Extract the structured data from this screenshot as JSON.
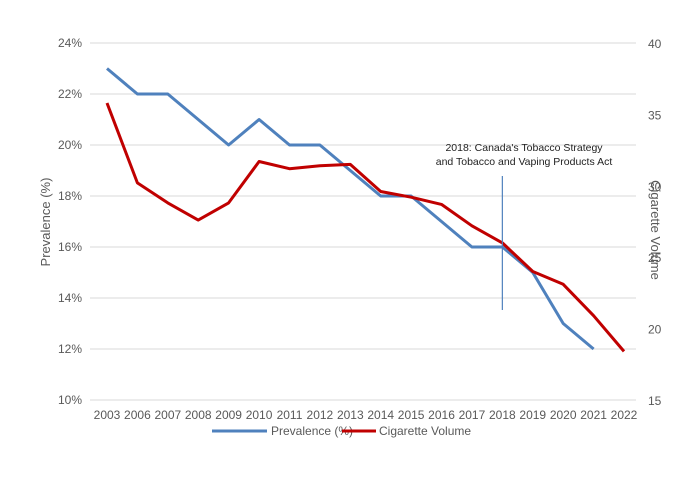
{
  "chart_data": {
    "type": "line",
    "x": [
      "2003",
      "2006",
      "2007",
      "2008",
      "2009",
      "2010",
      "2011",
      "2012",
      "2013",
      "2014",
      "2015",
      "2016",
      "2017",
      "2018",
      "2019",
      "2020",
      "2021",
      "2022"
    ],
    "series": [
      {
        "name": "Prevalence (%)",
        "axis": "left",
        "color": "#4f81bd",
        "values": [
          23,
          22,
          22,
          21,
          20,
          21,
          20,
          20,
          19,
          18,
          18,
          17,
          16,
          16,
          15,
          13,
          12,
          null
        ]
      },
      {
        "name": "Cigarette Volume",
        "axis": "right",
        "color": "#c00000",
        "values": [
          35.8,
          30.2,
          28.8,
          27.6,
          28.8,
          31.7,
          31.2,
          31.4,
          31.5,
          29.6,
          29.2,
          28.7,
          27.2,
          26.0,
          24.0,
          23.1,
          20.9,
          18.4
        ]
      }
    ],
    "ylabel": "Prevalence (%)",
    "y2label": "Cigarette Volume",
    "ylim": [
      10,
      24
    ],
    "y_ticks": [
      "10%",
      "12%",
      "14%",
      "16%",
      "18%",
      "20%",
      "22%",
      "24%"
    ],
    "y2lim": [
      15,
      40
    ],
    "y2_ticks": [
      "15",
      "20",
      "25",
      "30",
      "35",
      "40"
    ],
    "grid": true,
    "legend_position": "bottom",
    "annotation": {
      "x": "2018",
      "lines": [
        "2018: Canada's Tobacco Strategy",
        "and Tobacco and Vaping Products Act"
      ],
      "line_color": "#4f81bd"
    }
  }
}
